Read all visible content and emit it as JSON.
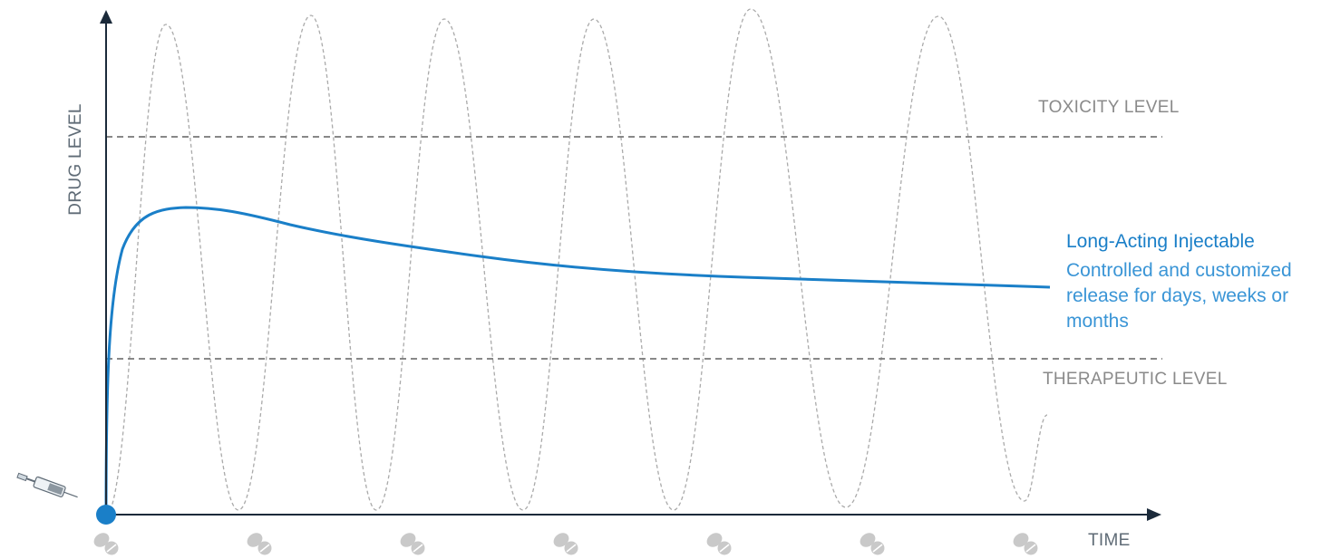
{
  "chart_data": {
    "type": "line",
    "xlabel": "TIME",
    "ylabel": "DRUG LEVEL",
    "reference_lines": {
      "toxicity": "TOXICITY LEVEL",
      "therapeutic": "THERAPEUTIC LEVEL"
    },
    "series": [
      {
        "name": "Long-Acting Injectable",
        "description": "Controlled and customized release for days, weeks or months",
        "style": "solid",
        "color": "#1a7fc8"
      },
      {
        "style": "dashed-oscillating",
        "color": "#aaaaaa",
        "doses": 7
      }
    ],
    "grid": false,
    "legend": "right-inline-label"
  },
  "colors": {
    "axis": "#1b2a3a",
    "reference": "#777777",
    "label_gray": "#8a8a8a",
    "lai_blue": "#1a7fc8",
    "oscillation": "#aaaaaa",
    "pill": "#c9c9c9"
  },
  "icons": {
    "origin": "syringe-icon",
    "dose": "pill-icon"
  }
}
